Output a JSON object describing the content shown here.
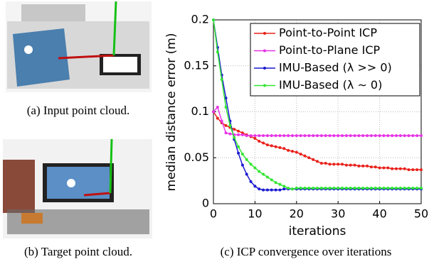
{
  "subfigures": [
    {
      "caption": "(a) Input point cloud."
    },
    {
      "caption": "(b) Target point cloud."
    }
  ],
  "chart_data": {
    "type": "line",
    "caption": "(c) ICP convergence over iterations",
    "xlabel": "iterations",
    "ylabel": "median distance error (m)",
    "x": [
      0,
      1,
      2,
      3,
      4,
      5,
      6,
      7,
      8,
      9,
      10,
      11,
      12,
      13,
      14,
      15,
      16,
      17,
      18,
      19,
      20,
      21,
      22,
      23,
      24,
      25,
      26,
      27,
      28,
      29,
      30,
      31,
      32,
      33,
      34,
      35,
      36,
      37,
      38,
      39,
      40,
      41,
      42,
      43,
      44,
      45,
      46,
      47,
      48,
      49,
      50
    ],
    "series": [
      {
        "name": "Point-to-Point ICP",
        "color": "#e8221b",
        "values": [
          0.1,
          0.093,
          0.088,
          0.085,
          0.083,
          0.081,
          0.079,
          0.077,
          0.075,
          0.073,
          0.071,
          0.068,
          0.066,
          0.064,
          0.063,
          0.062,
          0.061,
          0.06,
          0.058,
          0.057,
          0.056,
          0.054,
          0.052,
          0.05,
          0.048,
          0.046,
          0.044,
          0.044,
          0.043,
          0.043,
          0.043,
          0.043,
          0.042,
          0.042,
          0.042,
          0.041,
          0.041,
          0.041,
          0.04,
          0.04,
          0.039,
          0.039,
          0.039,
          0.038,
          0.038,
          0.038,
          0.038,
          0.037,
          0.037,
          0.037,
          0.037
        ]
      },
      {
        "name": "Point-to-Plane ICP",
        "color": "#e633e6",
        "values": [
          0.1,
          0.105,
          0.09,
          0.077,
          0.076,
          0.075,
          0.075,
          0.075,
          0.074,
          0.074,
          0.074,
          0.074,
          0.074,
          0.074,
          0.074,
          0.074,
          0.074,
          0.074,
          0.074,
          0.074,
          0.074,
          0.074,
          0.074,
          0.074,
          0.074,
          0.074,
          0.074,
          0.074,
          0.074,
          0.074,
          0.074,
          0.074,
          0.074,
          0.074,
          0.074,
          0.074,
          0.074,
          0.074,
          0.074,
          0.074,
          0.074,
          0.074,
          0.074,
          0.074,
          0.074,
          0.074,
          0.074,
          0.074,
          0.074,
          0.074,
          0.074
        ]
      },
      {
        "name": "IMU-Based (λ >> 0)",
        "color": "#1a1ad1",
        "values": [
          0.2,
          0.17,
          0.14,
          0.115,
          0.09,
          0.07,
          0.055,
          0.042,
          0.032,
          0.024,
          0.019,
          0.016,
          0.015,
          0.015,
          0.015,
          0.015,
          0.015,
          0.016,
          0.016,
          0.016,
          0.016,
          0.016,
          0.016,
          0.016,
          0.016,
          0.016,
          0.016,
          0.016,
          0.016,
          0.016,
          0.016,
          0.016,
          0.016,
          0.016,
          0.016,
          0.016,
          0.016,
          0.016,
          0.016,
          0.016,
          0.016,
          0.016,
          0.016,
          0.016,
          0.016,
          0.016,
          0.016,
          0.016,
          0.016,
          0.016,
          0.016
        ]
      },
      {
        "name": "IMU-Based (λ ∼ 0)",
        "color": "#33e633",
        "values": [
          0.2,
          0.165,
          0.135,
          0.105,
          0.085,
          0.072,
          0.062,
          0.054,
          0.048,
          0.043,
          0.039,
          0.035,
          0.032,
          0.029,
          0.026,
          0.023,
          0.021,
          0.019,
          0.017,
          0.016,
          0.017,
          0.017,
          0.017,
          0.017,
          0.017,
          0.017,
          0.017,
          0.017,
          0.017,
          0.017,
          0.017,
          0.017,
          0.017,
          0.017,
          0.017,
          0.017,
          0.017,
          0.017,
          0.017,
          0.017,
          0.017,
          0.017,
          0.017,
          0.017,
          0.017,
          0.017,
          0.017,
          0.017,
          0.017,
          0.017,
          0.017
        ]
      }
    ],
    "xlim": [
      0,
      50
    ],
    "ylim": [
      0,
      0.2
    ],
    "xticks": [
      0,
      10,
      20,
      30,
      40,
      50
    ],
    "yticks": [
      0,
      0.05,
      0.1,
      0.15,
      0.2
    ],
    "grid": true,
    "legend": "upper right"
  }
}
